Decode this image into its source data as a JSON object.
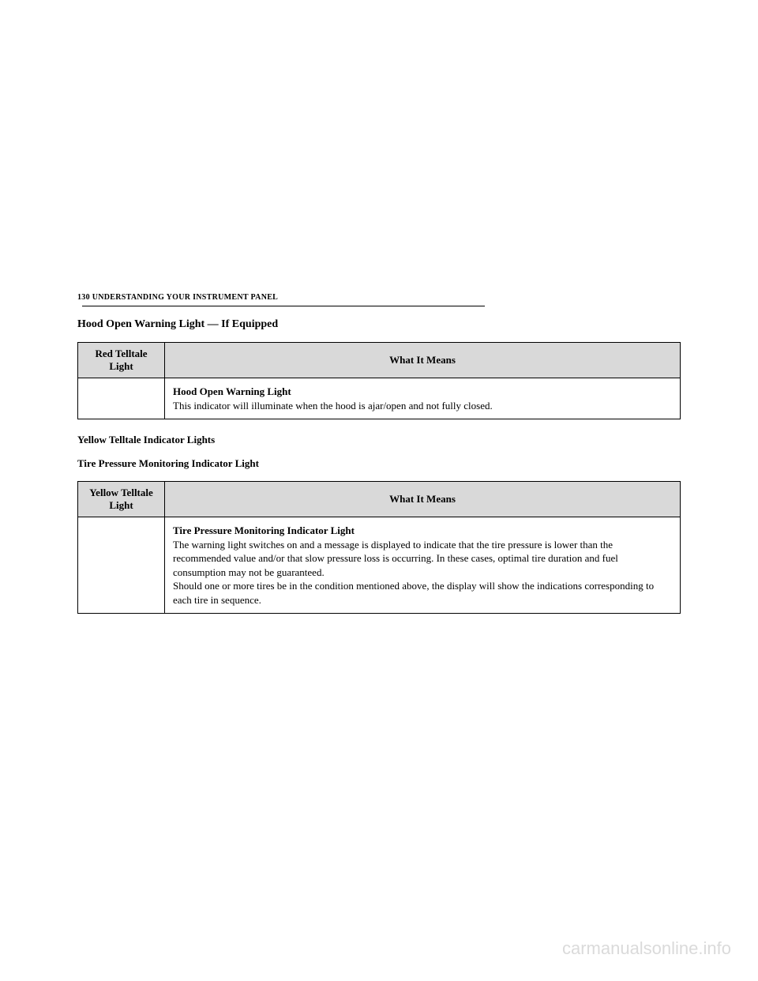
{
  "header": {
    "page_num": "130",
    "section": "UNDERSTANDING YOUR INSTRUMENT PANEL"
  },
  "section1": {
    "title": "Hood Open Warning Light — If Equipped",
    "col_light": "Red Telltale Light",
    "col_means": "What It Means",
    "desc_title": "Hood Open Warning Light",
    "desc_body": "This indicator will illuminate when the hood is ajar/open and not fully closed."
  },
  "subsection": {
    "title": "Yellow Telltale Indicator Lights"
  },
  "section2": {
    "title": "Tire Pressure Monitoring Indicator Light",
    "col_light": "Yellow Telltale Light",
    "col_means": "What It Means",
    "desc_title": "Tire Pressure Monitoring Indicator Light",
    "desc_body1": "The warning light switches on and a message is displayed to indicate that the tire pressure is lower than the recommended value and/or that slow pressure loss is occurring. In these cases, optimal tire duration and fuel consumption may not be guaranteed.",
    "desc_body2": "Should one or more tires be in the condition mentioned above, the display will show the indications corresponding to each tire in sequence."
  },
  "watermark": "carmanualsonline.info"
}
